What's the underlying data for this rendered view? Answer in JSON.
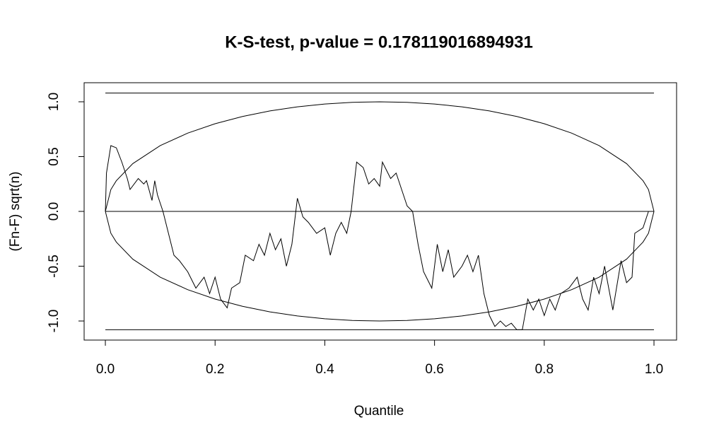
{
  "chart_data": {
    "type": "line",
    "title": "K-S-test, p-value =  0.178119016894931",
    "x_label": "Quantile",
    "y_label": "(Fn-F) sqrt(n)",
    "color": "#000000",
    "x": [
      0,
      0.002,
      0.01,
      0.02,
      0.03,
      0.04,
      0.045,
      0.06,
      0.07,
      0.075,
      0.085,
      0.09,
      0.095,
      0.105,
      0.115,
      0.125,
      0.135,
      0.15,
      0.165,
      0.18,
      0.19,
      0.2,
      0.21,
      0.222,
      0.23,
      0.245,
      0.255,
      0.27,
      0.28,
      0.29,
      0.3,
      0.31,
      0.32,
      0.33,
      0.34,
      0.35,
      0.36,
      0.37,
      0.385,
      0.4,
      0.41,
      0.42,
      0.43,
      0.44,
      0.448,
      0.458,
      0.47,
      0.48,
      0.49,
      0.5,
      0.505,
      0.52,
      0.53,
      0.54,
      0.55,
      0.56,
      0.57,
      0.58,
      0.595,
      0.605,
      0.615,
      0.625,
      0.635,
      0.65,
      0.66,
      0.67,
      0.68,
      0.69,
      0.7,
      0.71,
      0.72,
      0.73,
      0.74,
      0.75,
      0.76,
      0.77,
      0.78,
      0.79,
      0.8,
      0.81,
      0.82,
      0.83,
      0.845,
      0.86,
      0.87,
      0.88,
      0.89,
      0.9,
      0.91,
      0.925,
      0.94,
      0.95,
      0.96,
      0.965,
      0.98,
      0.99,
      1
    ],
    "values": [
      0,
      0.35,
      0.6,
      0.58,
      0.45,
      0.3,
      0.2,
      0.3,
      0.25,
      0.28,
      0.1,
      0.28,
      0.15,
      0,
      -0.2,
      -0.4,
      -0.45,
      -0.55,
      -0.7,
      -0.6,
      -0.75,
      -0.6,
      -0.8,
      -0.88,
      -0.7,
      -0.65,
      -0.4,
      -0.45,
      -0.3,
      -0.4,
      -0.2,
      -0.35,
      -0.25,
      -0.5,
      -0.3,
      0.12,
      -0.05,
      -0.1,
      -0.2,
      -0.15,
      -0.4,
      -0.2,
      -0.1,
      -0.2,
      0,
      0.45,
      0.4,
      0.25,
      0.3,
      0.23,
      0.45,
      0.3,
      0.35,
      0.2,
      0.05,
      0,
      -0.3,
      -0.55,
      -0.7,
      -0.3,
      -0.55,
      -0.35,
      -0.6,
      -0.5,
      -0.4,
      -0.55,
      -0.4,
      -0.75,
      -0.95,
      -1.05,
      -1,
      -1.05,
      -1.02,
      -1.08,
      -1.08,
      -0.8,
      -0.9,
      -0.8,
      -0.95,
      -0.8,
      -0.9,
      -0.75,
      -0.7,
      -0.6,
      -0.8,
      -0.9,
      -0.6,
      -0.75,
      -0.5,
      -0.9,
      -0.45,
      -0.65,
      -0.6,
      -0.2,
      -0.15,
      0,
      0
    ],
    "ellipse": {
      "x": [
        0,
        0.01,
        0.02,
        0.05,
        0.1,
        0.15,
        0.2,
        0.25,
        0.3,
        0.35,
        0.4,
        0.45,
        0.5,
        0.55,
        0.6,
        0.65,
        0.7,
        0.75,
        0.8,
        0.85,
        0.9,
        0.95,
        0.98,
        0.99,
        1
      ],
      "upper": [
        0,
        0.199,
        0.28,
        0.436,
        0.6,
        0.714,
        0.8,
        0.866,
        0.917,
        0.954,
        0.98,
        0.995,
        1,
        0.995,
        0.98,
        0.954,
        0.917,
        0.866,
        0.8,
        0.714,
        0.6,
        0.436,
        0.28,
        0.199,
        0
      ],
      "lower": [
        0,
        -0.199,
        -0.28,
        -0.436,
        -0.6,
        -0.714,
        -0.8,
        -0.866,
        -0.917,
        -0.954,
        -0.98,
        -0.995,
        -1,
        -0.995,
        -0.98,
        -0.954,
        -0.917,
        -0.866,
        -0.8,
        -0.714,
        -0.6,
        -0.436,
        -0.28,
        -0.199,
        0
      ]
    },
    "hlines": [
      1.08,
      0,
      -1.08
    ],
    "xlim": [
      -0.0387,
      1.0412
    ],
    "ylim": [
      -1.174,
      1.174
    ],
    "xticks": [
      {
        "value": 0,
        "label": "0.0"
      },
      0.2,
      0.4,
      0.6,
      0.8,
      {
        "value": 1,
        "label": "1.0"
      }
    ],
    "yticks": [
      {
        "value": -1,
        "label": "-1.0"
      },
      -0.5,
      {
        "value": 0,
        "label": "0.0"
      },
      0.5,
      {
        "value": 1,
        "label": "1.0"
      }
    ]
  }
}
